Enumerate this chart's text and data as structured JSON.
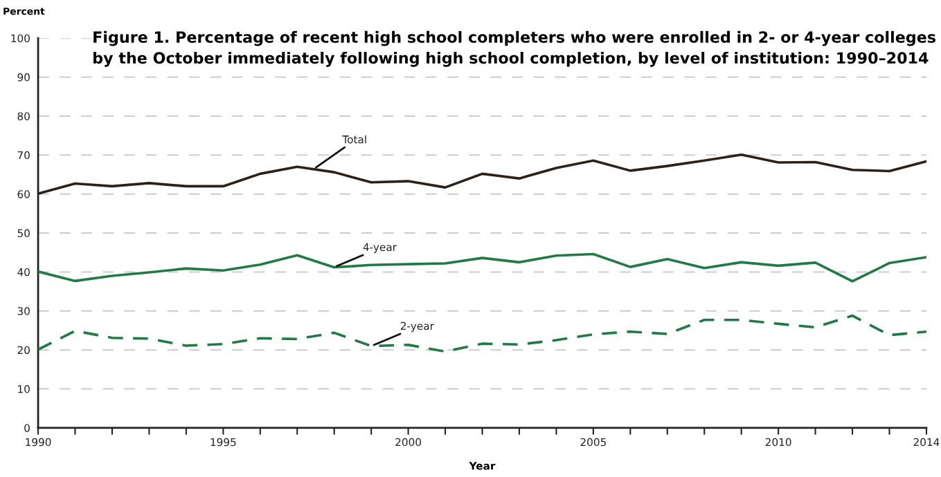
{
  "chart_data": {
    "type": "line",
    "title": "Figure 1. Percentage of recent high school completers who were enrolled in 2- or 4-year colleges by the October immediately following high school completion, by level of institution: 1990–2014",
    "xlabel": "Year",
    "ylabel": "Percent",
    "x": [
      1990,
      1991,
      1992,
      1993,
      1994,
      1995,
      1996,
      1997,
      1998,
      1999,
      2000,
      2001,
      2002,
      2003,
      2004,
      2005,
      2006,
      2007,
      2008,
      2009,
      2010,
      2011,
      2012,
      2013,
      2014
    ],
    "series": [
      {
        "name": "Total",
        "color": "#2b2118",
        "line_style": "solid",
        "values": [
          60.1,
          62.7,
          62.0,
          62.8,
          62.0,
          62.0,
          65.2,
          67.0,
          65.6,
          63.0,
          63.3,
          61.7,
          65.2,
          64.0,
          66.7,
          68.6,
          66.0,
          67.2,
          68.6,
          70.1,
          68.1,
          68.2,
          66.2,
          65.9,
          68.4
        ]
      },
      {
        "name": "4-year",
        "color": "#1f7a45",
        "line_style": "solid",
        "values": [
          40.1,
          37.7,
          39.0,
          39.9,
          40.9,
          40.4,
          41.9,
          44.3,
          41.2,
          41.8,
          42.0,
          42.2,
          43.6,
          42.5,
          44.2,
          44.6,
          41.3,
          43.3,
          41.0,
          42.5,
          41.6,
          42.4,
          37.6,
          42.3,
          43.8
        ]
      },
      {
        "name": "2-year",
        "color": "#1f7a45",
        "line_style": "dashed",
        "values": [
          20.1,
          24.9,
          23.1,
          22.9,
          21.1,
          21.5,
          23.0,
          22.8,
          24.4,
          21.0,
          21.3,
          19.6,
          21.6,
          21.4,
          22.5,
          24.0,
          24.7,
          24.1,
          27.7,
          27.7,
          26.7,
          25.8,
          28.8,
          23.8,
          24.7
        ]
      }
    ],
    "xlim": [
      1990,
      2014
    ],
    "xticks": [
      1990,
      {
        "value": 1991,
        "label": null
      },
      {
        "value": 1992,
        "label": null
      },
      {
        "value": 1993,
        "label": null
      },
      {
        "value": 1994,
        "label": null
      },
      1995,
      {
        "value": 1996,
        "label": null
      },
      {
        "value": 1997,
        "label": null
      },
      {
        "value": 1998,
        "label": null
      },
      {
        "value": 1999,
        "label": null
      },
      2000,
      {
        "value": 2001,
        "label": null
      },
      {
        "value": 2002,
        "label": null
      },
      {
        "value": 2003,
        "label": null
      },
      {
        "value": 2004,
        "label": null
      },
      2005,
      {
        "value": 2006,
        "label": null
      },
      {
        "value": 2007,
        "label": null
      },
      {
        "value": 2008,
        "label": null
      },
      {
        "value": 2009,
        "label": null
      },
      2010,
      {
        "value": 2011,
        "label": null
      },
      {
        "value": 2012,
        "label": null
      },
      {
        "value": 2013,
        "label": null
      },
      2014
    ],
    "ylim": [
      0,
      100
    ],
    "yticks": [
      0,
      10,
      20,
      30,
      40,
      50,
      60,
      70,
      80,
      90,
      100
    ],
    "grid": "y",
    "legend": false,
    "marker": "none"
  }
}
